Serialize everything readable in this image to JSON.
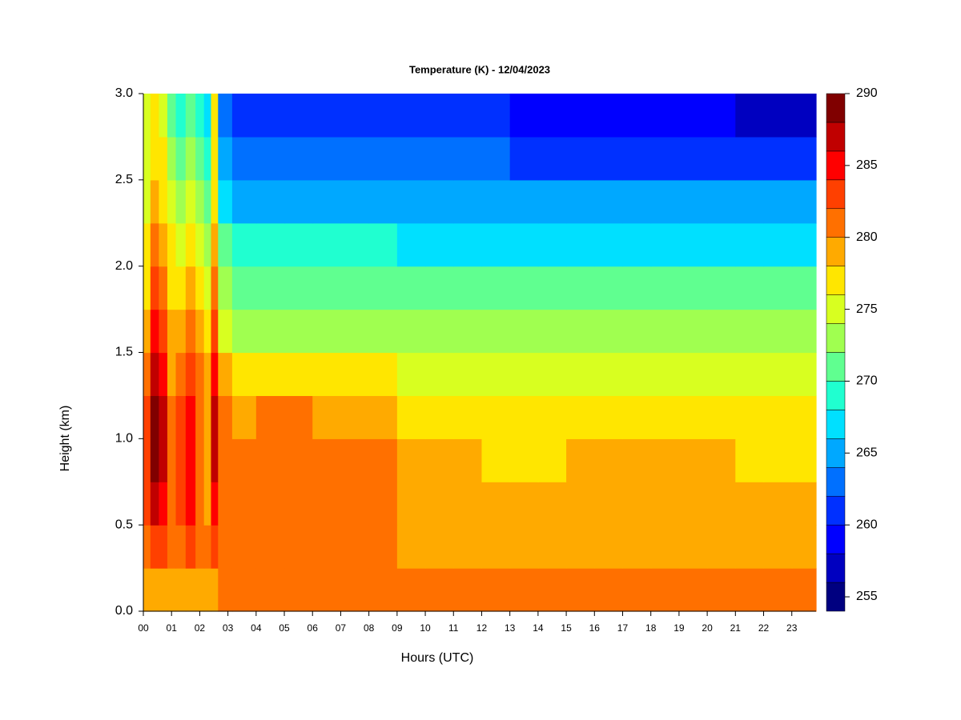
{
  "chart_data": {
    "type": "filled-contour",
    "title": "Temperature (K) - 12/04/2023",
    "xlabel": "Hours (UTC)",
    "ylabel": "Height (km)",
    "xlim": [
      0,
      23.86
    ],
    "ylim": [
      0,
      3
    ],
    "xticks": [
      {
        "value": 0,
        "label": "00"
      },
      {
        "value": 1,
        "label": "01"
      },
      {
        "value": 2,
        "label": "02"
      },
      {
        "value": 3,
        "label": "03"
      },
      {
        "value": 4,
        "label": "04"
      },
      {
        "value": 5,
        "label": "05"
      },
      {
        "value": 6,
        "label": "06"
      },
      {
        "value": 7,
        "label": "07"
      },
      {
        "value": 8,
        "label": "08"
      },
      {
        "value": 9,
        "label": "09"
      },
      {
        "value": 10,
        "label": "10"
      },
      {
        "value": 11,
        "label": "11"
      },
      {
        "value": 12,
        "label": "12"
      },
      {
        "value": 13,
        "label": "13"
      },
      {
        "value": 14,
        "label": "14"
      },
      {
        "value": 15,
        "label": "15"
      },
      {
        "value": 16,
        "label": "16"
      },
      {
        "value": 17,
        "label": "17"
      },
      {
        "value": 18,
        "label": "18"
      },
      {
        "value": 19,
        "label": "19"
      },
      {
        "value": 20,
        "label": "20"
      },
      {
        "value": 21,
        "label": "21"
      },
      {
        "value": 22,
        "label": "22"
      },
      {
        "value": 23,
        "label": "23"
      }
    ],
    "yticks": [
      {
        "value": 0,
        "label": "0.0"
      },
      {
        "value": 0.5,
        "label": "0.5"
      },
      {
        "value": 1,
        "label": "1.0"
      },
      {
        "value": 1.5,
        "label": "1.5"
      },
      {
        "value": 2,
        "label": "2.0"
      },
      {
        "value": 2.5,
        "label": "2.5"
      },
      {
        "value": 3,
        "label": "3.0"
      }
    ],
    "levels": [
      254,
      256,
      258,
      260,
      262,
      264,
      266,
      268,
      270,
      272,
      274,
      276,
      278,
      280,
      282,
      284,
      286,
      288,
      290
    ],
    "colors": [
      "#000080",
      "#0000c0",
      "#0000ff",
      "#0030ff",
      "#0070ff",
      "#00a8ff",
      "#00e0ff",
      "#20ffd0",
      "#60ff90",
      "#a0ff50",
      "#d8ff20",
      "#ffe600",
      "#ffaa00",
      "#ff7000",
      "#ff4000",
      "#ff0000",
      "#c00000",
      "#800000"
    ],
    "colorbar_ticks": [
      255,
      260,
      265,
      270,
      275,
      280,
      285,
      290
    ],
    "x": [
      0.1,
      0.4,
      0.7,
      1.0,
      1.3,
      1.7,
      2.0,
      2.3,
      2.5,
      2.8,
      3.5,
      4.5,
      5.5,
      6.5,
      7.5,
      8.5,
      9.5,
      10.5,
      11.5,
      12.5,
      13.5,
      14.5,
      15.5,
      16.5,
      17.5,
      18.5,
      19.5,
      20.5,
      21.5,
      22.5,
      23.5
    ],
    "y": [
      0.125,
      0.375,
      0.625,
      0.875,
      1.125,
      1.375,
      1.625,
      1.875,
      2.125,
      2.375,
      2.625,
      2.875
    ],
    "z": [
      [
        279,
        279,
        279,
        279,
        279,
        279,
        279,
        279,
        279,
        281,
        281,
        281,
        281,
        281,
        281,
        281,
        281,
        281,
        281,
        281,
        281,
        281,
        281,
        281,
        281,
        281,
        281,
        281,
        281,
        281,
        281
      ],
      [
        281,
        283,
        283,
        281,
        281,
        283,
        281,
        281,
        283,
        281,
        281,
        281,
        281,
        281,
        281,
        281,
        279,
        279,
        279,
        279,
        279,
        279,
        279,
        279,
        279,
        279,
        279,
        279,
        279,
        279,
        279
      ],
      [
        283,
        287,
        285,
        281,
        283,
        285,
        281,
        279,
        285,
        281,
        281,
        281,
        281,
        281,
        281,
        281,
        279,
        279,
        279,
        279,
        279,
        279,
        279,
        279,
        279,
        279,
        279,
        279,
        279,
        279,
        279
      ],
      [
        283,
        289,
        287,
        281,
        283,
        285,
        281,
        279,
        287,
        281,
        281,
        281,
        281,
        281,
        281,
        281,
        279,
        279,
        279,
        277,
        277,
        277,
        279,
        279,
        279,
        279,
        279,
        279,
        277,
        277,
        277
      ],
      [
        283,
        289,
        287,
        281,
        283,
        285,
        281,
        279,
        287,
        281,
        279,
        281,
        281,
        279,
        279,
        279,
        277,
        277,
        277,
        277,
        277,
        277,
        277,
        277,
        277,
        277,
        277,
        277,
        277,
        277,
        277
      ],
      [
        281,
        287,
        285,
        279,
        281,
        283,
        281,
        279,
        285,
        279,
        277,
        277,
        277,
        277,
        277,
        277,
        275,
        275,
        275,
        275,
        275,
        275,
        275,
        275,
        275,
        275,
        275,
        275,
        275,
        275,
        275
      ],
      [
        279,
        285,
        283,
        279,
        279,
        281,
        279,
        277,
        283,
        275,
        273,
        273,
        273,
        273,
        273,
        273,
        273,
        273,
        273,
        273,
        273,
        273,
        273,
        273,
        273,
        273,
        273,
        273,
        273,
        273,
        273
      ],
      [
        277,
        283,
        281,
        277,
        277,
        279,
        277,
        275,
        281,
        273,
        271,
        271,
        271,
        271,
        271,
        271,
        271,
        271,
        271,
        271,
        271,
        271,
        271,
        271,
        271,
        271,
        271,
        271,
        271,
        271,
        271
      ],
      [
        277,
        281,
        279,
        277,
        275,
        277,
        275,
        273,
        279,
        271,
        269,
        269,
        269,
        269,
        269,
        269,
        267,
        267,
        267,
        267,
        267,
        267,
        267,
        267,
        267,
        267,
        267,
        267,
        267,
        267,
        267
      ],
      [
        275,
        279,
        277,
        275,
        273,
        275,
        273,
        271,
        277,
        267,
        265,
        265,
        265,
        265,
        265,
        265,
        265,
        265,
        265,
        265,
        265,
        265,
        265,
        265,
        265,
        265,
        265,
        265,
        265,
        265,
        265
      ],
      [
        275,
        277,
        277,
        273,
        271,
        273,
        271,
        269,
        277,
        265,
        263,
        263,
        263,
        263,
        263,
        263,
        263,
        263,
        263,
        263,
        261,
        261,
        261,
        261,
        261,
        261,
        261,
        261,
        261,
        261,
        261
      ],
      [
        275,
        277,
        275,
        271,
        269,
        271,
        269,
        267,
        277,
        263,
        261,
        261,
        261,
        261,
        261,
        261,
        261,
        261,
        261,
        261,
        259,
        259,
        259,
        259,
        259,
        259,
        259,
        259,
        257,
        257,
        257
      ]
    ]
  }
}
